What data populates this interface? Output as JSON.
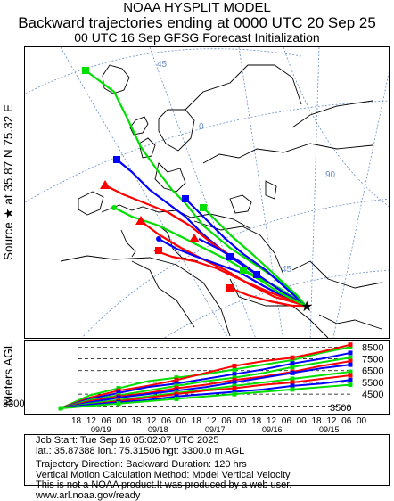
{
  "header": {
    "line1": "NOAA HYSPLIT MODEL",
    "line2": "Backward trajectories ending at 0000 UTC 20 Sep 25",
    "line3": "00 UTC 16 Sep    GFSG  Forecast Initialization"
  },
  "side": {
    "source_label": "Source ★ at   35.87 N   75.32 E",
    "height_label": "Meters AGL"
  },
  "map": {
    "grid_labels": [
      "45",
      "0",
      "90",
      "45"
    ],
    "land_color": "#000000",
    "grid_color": "#6a8fc7"
  },
  "chart_data": {
    "type": "line",
    "title": "Backward trajectories ending at 0000 UTC 20 Sep 25",
    "xlabel": "",
    "ylabel": "Meters AGL",
    "source": {
      "lat": 35.87388,
      "lon": 75.31506,
      "height_m": 3300
    },
    "start_height_label": "3300",
    "y_ticks": [
      "8500",
      "7500",
      "6500",
      "5500",
      "4500",
      "3500"
    ],
    "x_hour_ticks": [
      "18",
      "12",
      "06",
      "00",
      "18",
      "12",
      "06",
      "00",
      "18",
      "12",
      "06",
      "00",
      "18",
      "12",
      "06",
      "00",
      "18",
      "12",
      "06",
      "00"
    ],
    "x_date_ticks": [
      "09/19",
      "09/18",
      "09/17",
      "09/16",
      "09/15"
    ],
    "hours_back": 120,
    "series_colors": [
      "#ff0000",
      "#0000ff",
      "#00e000"
    ],
    "height_series": [
      {
        "color": "#00e000",
        "values": [
          3300,
          4400,
          5000,
          5600,
          5900,
          6200,
          6600,
          7000,
          7400,
          8000,
          8500
        ]
      },
      {
        "color": "#ff0000",
        "values": [
          3300,
          4200,
          4800,
          5200,
          5700,
          6300,
          6900,
          7300,
          7600,
          8100,
          8700
        ]
      },
      {
        "color": "#0000ff",
        "values": [
          3300,
          4100,
          4600,
          5100,
          5400,
          5800,
          6200,
          6600,
          7100,
          7500,
          8000
        ]
      },
      {
        "color": "#00e000",
        "values": [
          3300,
          4000,
          4400,
          4800,
          5200,
          5600,
          5900,
          6300,
          6800,
          7200,
          7600
        ]
      },
      {
        "color": "#ff0000",
        "values": [
          3300,
          3900,
          4300,
          4600,
          5000,
          5300,
          5700,
          6000,
          6400,
          6900,
          7300
        ]
      },
      {
        "color": "#0000ff",
        "values": [
          3300,
          3800,
          4200,
          4500,
          4800,
          5100,
          5500,
          5900,
          6300,
          6700,
          7000
        ]
      },
      {
        "color": "#00e000",
        "values": [
          3300,
          3700,
          4000,
          4300,
          4600,
          4900,
          5200,
          5500,
          5800,
          6100,
          6400
        ]
      },
      {
        "color": "#ff0000",
        "values": [
          3300,
          3600,
          3900,
          4200,
          4500,
          4800,
          5000,
          5300,
          5500,
          5800,
          6100
        ]
      },
      {
        "color": "#0000ff",
        "values": [
          3300,
          3600,
          3800,
          4000,
          4300,
          4500,
          4700,
          4900,
          5200,
          5400,
          5700
        ]
      },
      {
        "color": "#00e000",
        "values": [
          3300,
          3500,
          3700,
          3900,
          4100,
          4300,
          4500,
          4700,
          4900,
          5100,
          5300
        ]
      }
    ]
  },
  "footer": {
    "line1": "Job Start: Tue Sep 16 05:02:07 UTC 2025",
    "line2": "lat.: 35.87388   lon.: 75.31506   hgt: 3300.0 m AGL",
    "line3": "Trajectory Direction: Backward       Duration: 120 hrs",
    "line4": "Vertical Motion Calculation Method: Model Vertical Velocity",
    "line5": "This is not a NOAA product.It was produced by a web user. www.arl.noaa.gov/ready"
  }
}
